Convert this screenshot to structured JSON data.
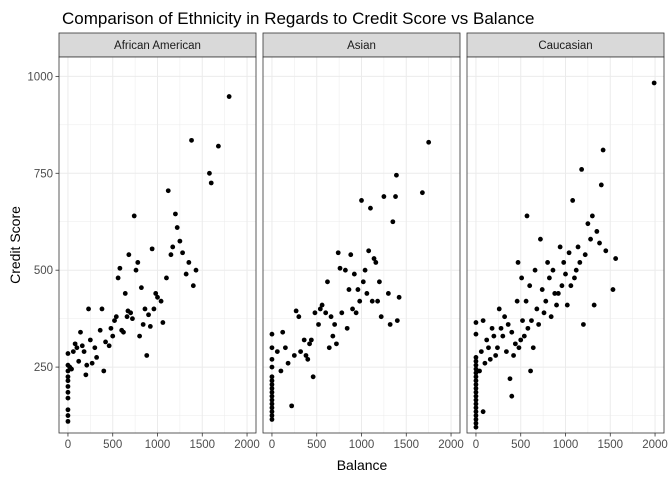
{
  "chart_data": {
    "type": "scatter",
    "title": "Comparison of Ethnicity in Regards to Credit Score vs Balance",
    "xlabel": "Balance",
    "ylabel": "Credit Score",
    "xlim": [
      -100,
      2100
    ],
    "ylim": [
      80,
      1050
    ],
    "x_ticks": [
      0,
      500,
      1000,
      1500,
      2000
    ],
    "y_ticks": [
      250,
      500,
      750,
      1000
    ],
    "grid": true,
    "point_color": "#000000",
    "panels": [
      {
        "name": "African American",
        "points": [
          [
            0,
            110
          ],
          [
            0,
            125
          ],
          [
            0,
            140
          ],
          [
            0,
            170
          ],
          [
            0,
            185
          ],
          [
            0,
            200
          ],
          [
            0,
            215
          ],
          [
            0,
            225
          ],
          [
            0,
            240
          ],
          [
            0,
            255
          ],
          [
            0,
            285
          ],
          [
            20,
            250
          ],
          [
            40,
            245
          ],
          [
            60,
            290
          ],
          [
            80,
            310
          ],
          [
            100,
            300
          ],
          [
            120,
            265
          ],
          [
            140,
            340
          ],
          [
            160,
            305
          ],
          [
            180,
            290
          ],
          [
            200,
            230
          ],
          [
            210,
            255
          ],
          [
            230,
            400
          ],
          [
            250,
            320
          ],
          [
            270,
            260
          ],
          [
            300,
            300
          ],
          [
            320,
            275
          ],
          [
            360,
            345
          ],
          [
            380,
            400
          ],
          [
            400,
            240
          ],
          [
            420,
            315
          ],
          [
            460,
            305
          ],
          [
            480,
            350
          ],
          [
            500,
            330
          ],
          [
            520,
            370
          ],
          [
            540,
            380
          ],
          [
            560,
            480
          ],
          [
            580,
            505
          ],
          [
            600,
            345
          ],
          [
            620,
            340
          ],
          [
            640,
            440
          ],
          [
            660,
            380
          ],
          [
            670,
            395
          ],
          [
            680,
            540
          ],
          [
            700,
            390
          ],
          [
            720,
            375
          ],
          [
            740,
            640
          ],
          [
            760,
            500
          ],
          [
            780,
            520
          ],
          [
            800,
            330
          ],
          [
            820,
            455
          ],
          [
            840,
            360
          ],
          [
            860,
            400
          ],
          [
            880,
            280
          ],
          [
            900,
            385
          ],
          [
            920,
            355
          ],
          [
            940,
            555
          ],
          [
            960,
            400
          ],
          [
            980,
            440
          ],
          [
            1000,
            430
          ],
          [
            1040,
            420
          ],
          [
            1060,
            365
          ],
          [
            1100,
            480
          ],
          [
            1120,
            705
          ],
          [
            1150,
            540
          ],
          [
            1170,
            560
          ],
          [
            1200,
            645
          ],
          [
            1220,
            610
          ],
          [
            1250,
            575
          ],
          [
            1280,
            545
          ],
          [
            1320,
            490
          ],
          [
            1350,
            520
          ],
          [
            1380,
            835
          ],
          [
            1400,
            460
          ],
          [
            1430,
            500
          ],
          [
            1580,
            750
          ],
          [
            1600,
            725
          ],
          [
            1680,
            820
          ],
          [
            1800,
            948
          ]
        ]
      },
      {
        "name": "Asian",
        "points": [
          [
            0,
            115
          ],
          [
            0,
            125
          ],
          [
            0,
            135
          ],
          [
            0,
            145
          ],
          [
            0,
            155
          ],
          [
            0,
            165
          ],
          [
            0,
            175
          ],
          [
            0,
            185
          ],
          [
            0,
            195
          ],
          [
            0,
            205
          ],
          [
            0,
            215
          ],
          [
            0,
            225
          ],
          [
            0,
            250
          ],
          [
            0,
            270
          ],
          [
            0,
            300
          ],
          [
            0,
            335
          ],
          [
            60,
            290
          ],
          [
            100,
            240
          ],
          [
            120,
            340
          ],
          [
            150,
            300
          ],
          [
            180,
            260
          ],
          [
            220,
            150
          ],
          [
            250,
            280
          ],
          [
            270,
            395
          ],
          [
            300,
            380
          ],
          [
            320,
            290
          ],
          [
            360,
            320
          ],
          [
            380,
            280
          ],
          [
            400,
            270
          ],
          [
            420,
            310
          ],
          [
            440,
            320
          ],
          [
            460,
            225
          ],
          [
            480,
            390
          ],
          [
            520,
            360
          ],
          [
            540,
            400
          ],
          [
            560,
            410
          ],
          [
            600,
            390
          ],
          [
            620,
            470
          ],
          [
            640,
            300
          ],
          [
            660,
            380
          ],
          [
            680,
            330
          ],
          [
            700,
            360
          ],
          [
            720,
            310
          ],
          [
            740,
            545
          ],
          [
            760,
            505
          ],
          [
            780,
            390
          ],
          [
            820,
            500
          ],
          [
            840,
            350
          ],
          [
            860,
            450
          ],
          [
            880,
            540
          ],
          [
            900,
            400
          ],
          [
            920,
            490
          ],
          [
            940,
            390
          ],
          [
            960,
            450
          ],
          [
            980,
            420
          ],
          [
            1000,
            680
          ],
          [
            1020,
            470
          ],
          [
            1040,
            500
          ],
          [
            1060,
            440
          ],
          [
            1080,
            550
          ],
          [
            1100,
            660
          ],
          [
            1120,
            420
          ],
          [
            1140,
            530
          ],
          [
            1160,
            520
          ],
          [
            1180,
            420
          ],
          [
            1200,
            470
          ],
          [
            1220,
            380
          ],
          [
            1250,
            690
          ],
          [
            1300,
            440
          ],
          [
            1320,
            360
          ],
          [
            1350,
            625
          ],
          [
            1380,
            690
          ],
          [
            1390,
            745
          ],
          [
            1400,
            370
          ],
          [
            1420,
            430
          ],
          [
            1680,
            700
          ],
          [
            1750,
            830
          ]
        ]
      },
      {
        "name": "Caucasian",
        "points": [
          [
            0,
            95
          ],
          [
            0,
            105
          ],
          [
            0,
            115
          ],
          [
            0,
            125
          ],
          [
            0,
            135
          ],
          [
            0,
            145
          ],
          [
            0,
            155
          ],
          [
            0,
            165
          ],
          [
            0,
            175
          ],
          [
            0,
            185
          ],
          [
            0,
            195
          ],
          [
            0,
            205
          ],
          [
            0,
            215
          ],
          [
            0,
            225
          ],
          [
            0,
            235
          ],
          [
            0,
            245
          ],
          [
            0,
            255
          ],
          [
            0,
            265
          ],
          [
            0,
            275
          ],
          [
            0,
            335
          ],
          [
            0,
            365
          ],
          [
            40,
            240
          ],
          [
            60,
            290
          ],
          [
            80,
            135
          ],
          [
            80,
            370
          ],
          [
            100,
            260
          ],
          [
            120,
            320
          ],
          [
            140,
            300
          ],
          [
            160,
            270
          ],
          [
            180,
            350
          ],
          [
            200,
            330
          ],
          [
            220,
            280
          ],
          [
            240,
            300
          ],
          [
            260,
            400
          ],
          [
            280,
            350
          ],
          [
            300,
            330
          ],
          [
            320,
            380
          ],
          [
            340,
            290
          ],
          [
            360,
            360
          ],
          [
            380,
            220
          ],
          [
            400,
            340
          ],
          [
            400,
            175
          ],
          [
            420,
            280
          ],
          [
            440,
            310
          ],
          [
            460,
            420
          ],
          [
            470,
            520
          ],
          [
            480,
            300
          ],
          [
            500,
            320
          ],
          [
            510,
            480
          ],
          [
            520,
            370
          ],
          [
            540,
            330
          ],
          [
            560,
            420
          ],
          [
            570,
            640
          ],
          [
            580,
            350
          ],
          [
            600,
            460
          ],
          [
            610,
            240
          ],
          [
            620,
            370
          ],
          [
            640,
            300
          ],
          [
            660,
            500
          ],
          [
            680,
            400
          ],
          [
            700,
            360
          ],
          [
            720,
            580
          ],
          [
            740,
            450
          ],
          [
            760,
            390
          ],
          [
            780,
            420
          ],
          [
            800,
            520
          ],
          [
            820,
            480
          ],
          [
            840,
            380
          ],
          [
            860,
            500
          ],
          [
            880,
            440
          ],
          [
            900,
            410
          ],
          [
            920,
            440
          ],
          [
            940,
            560
          ],
          [
            960,
            460
          ],
          [
            980,
            520
          ],
          [
            1000,
            490
          ],
          [
            1020,
            410
          ],
          [
            1040,
            545
          ],
          [
            1060,
            460
          ],
          [
            1080,
            680
          ],
          [
            1100,
            480
          ],
          [
            1120,
            500
          ],
          [
            1140,
            560
          ],
          [
            1160,
            520
          ],
          [
            1180,
            760
          ],
          [
            1200,
            360
          ],
          [
            1220,
            540
          ],
          [
            1250,
            620
          ],
          [
            1280,
            580
          ],
          [
            1300,
            640
          ],
          [
            1320,
            410
          ],
          [
            1350,
            600
          ],
          [
            1380,
            570
          ],
          [
            1400,
            720
          ],
          [
            1420,
            810
          ],
          [
            1450,
            550
          ],
          [
            1530,
            450
          ],
          [
            1560,
            530
          ],
          [
            1990,
            983
          ]
        ]
      }
    ]
  }
}
